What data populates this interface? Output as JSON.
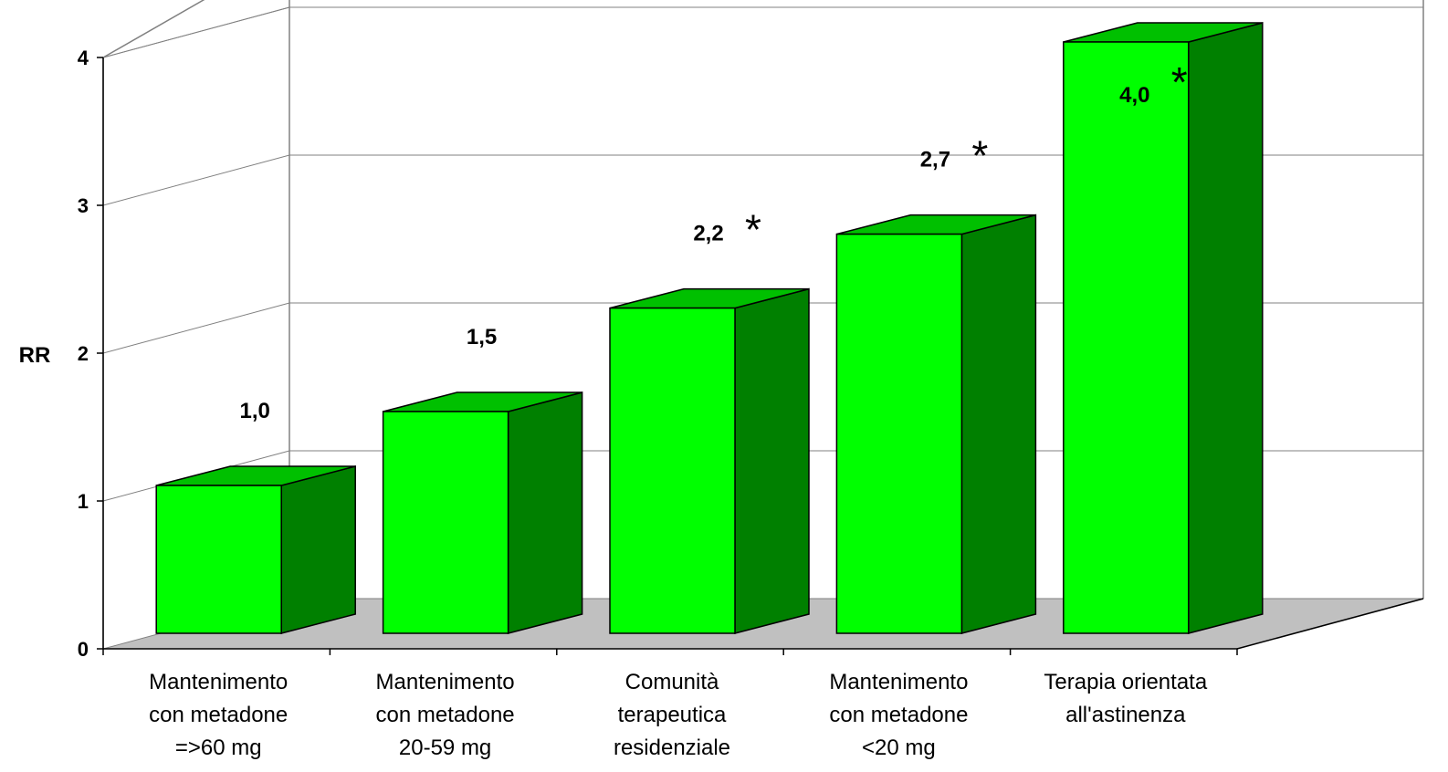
{
  "chart_data": {
    "type": "bar",
    "title": "",
    "xlabel": "",
    "ylabel": "RR",
    "ylim": [
      0,
      4
    ],
    "yticks": [
      "0",
      "1",
      "2",
      "3",
      "4"
    ],
    "categories": [
      [
        "Mantenimento",
        "con metadone",
        "=>60 mg"
      ],
      [
        "Mantenimento",
        "con metadone",
        "20-59 mg"
      ],
      [
        "Comunità",
        "terapeutica",
        "residenziale"
      ],
      [
        "Mantenimento",
        "con metadone",
        "<20 mg"
      ],
      [
        "Terapia orientata",
        "all'astinenza"
      ]
    ],
    "values": [
      1.0,
      1.5,
      2.2,
      2.7,
      4.0
    ],
    "data_labels": [
      "1,0",
      "1,5",
      "2,2",
      "2,7",
      "4,0"
    ],
    "significant": [
      false,
      false,
      true,
      true,
      true
    ],
    "significance_marker": "*",
    "grid": true,
    "three_d": true,
    "colors": {
      "bar_front": "#00ff00",
      "bar_top": "#00c000",
      "bar_side": "#008000",
      "floor": "#c0c0c0",
      "outline": "#000000",
      "grid": "#808080"
    }
  }
}
